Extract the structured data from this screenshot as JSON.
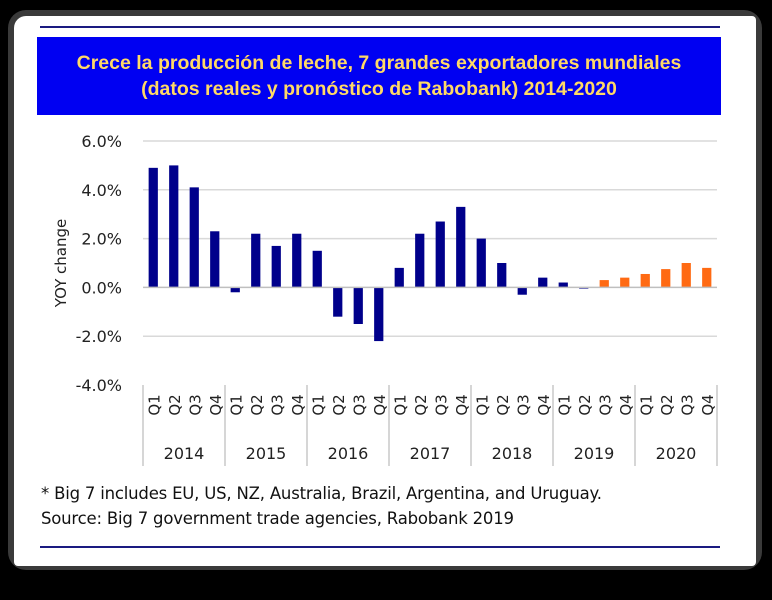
{
  "chart_data": {
    "type": "bar",
    "title": "Crece la producción de leche, 7 grandes exportadores mundiales (datos reales y pronóstico de Rabobank) 2014-2020",
    "ylabel": "YOY change",
    "xlabel": "",
    "ylim": [
      -4.0,
      6.0
    ],
    "yticks": [
      "6.0%",
      "4.0%",
      "2.0%",
      "0.0%",
      "-2.0%",
      "-4.0%"
    ],
    "ytick_values": [
      6,
      4,
      2,
      0,
      -2,
      -4
    ],
    "grid": true,
    "years": [
      "2014",
      "2015",
      "2016",
      "2017",
      "2018",
      "2019",
      "2020"
    ],
    "quarters": [
      "Q1",
      "Q2",
      "Q3",
      "Q4"
    ],
    "values": [
      4.9,
      5.0,
      4.1,
      2.3,
      -0.2,
      2.2,
      1.7,
      2.2,
      1.5,
      -1.2,
      -1.5,
      -2.2,
      0.8,
      2.2,
      2.7,
      3.3,
      2.0,
      1.0,
      -0.3,
      0.4,
      0.2,
      -0.05,
      0.3,
      0.4,
      0.55,
      0.75,
      1.0,
      0.8
    ],
    "actual_color": "#00008b",
    "forecast_color": "#ff6a13",
    "forecast_start_index": 22
  },
  "notes": {
    "line1": "* Big 7 includes EU, US, NZ, Australia, Brazil, Argentina, and Uruguay.",
    "line2": "Source: Big 7 government trade agencies, Rabobank 2019"
  },
  "colors": {
    "title_bg": "#0000f2",
    "title_text": "#ffd966",
    "rule": "#1a1a80"
  }
}
